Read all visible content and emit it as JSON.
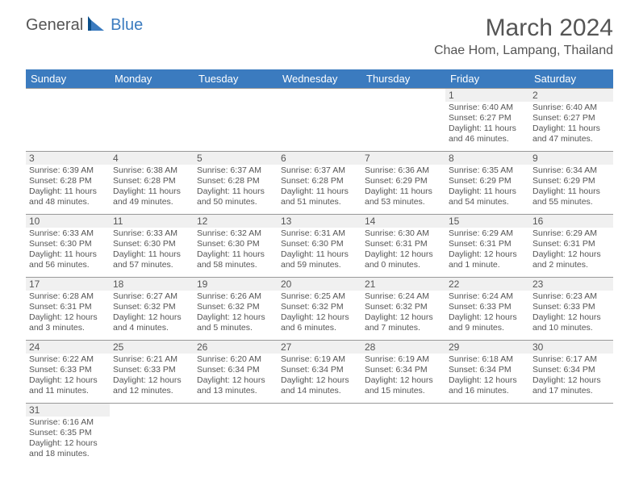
{
  "brand": {
    "general": "General",
    "blue": "Blue"
  },
  "title": "March 2024",
  "location": "Chae Hom, Lampang, Thailand",
  "colors": {
    "header_bg": "#3b7bbf",
    "header_text": "#ffffff",
    "daynum_bg": "#f0f0f0",
    "text": "#555555",
    "border": "#999999",
    "background": "#ffffff"
  },
  "weekdays": [
    "Sunday",
    "Monday",
    "Tuesday",
    "Wednesday",
    "Thursday",
    "Friday",
    "Saturday"
  ],
  "days": [
    {
      "n": "",
      "sunrise": "",
      "sunset": "",
      "daylight": "",
      "empty": true
    },
    {
      "n": "",
      "sunrise": "",
      "sunset": "",
      "daylight": "",
      "empty": true
    },
    {
      "n": "",
      "sunrise": "",
      "sunset": "",
      "daylight": "",
      "empty": true
    },
    {
      "n": "",
      "sunrise": "",
      "sunset": "",
      "daylight": "",
      "empty": true
    },
    {
      "n": "",
      "sunrise": "",
      "sunset": "",
      "daylight": "",
      "empty": true
    },
    {
      "n": "1",
      "sunrise": "Sunrise: 6:40 AM",
      "sunset": "Sunset: 6:27 PM",
      "daylight": "Daylight: 11 hours and 46 minutes."
    },
    {
      "n": "2",
      "sunrise": "Sunrise: 6:40 AM",
      "sunset": "Sunset: 6:27 PM",
      "daylight": "Daylight: 11 hours and 47 minutes."
    },
    {
      "n": "3",
      "sunrise": "Sunrise: 6:39 AM",
      "sunset": "Sunset: 6:28 PM",
      "daylight": "Daylight: 11 hours and 48 minutes."
    },
    {
      "n": "4",
      "sunrise": "Sunrise: 6:38 AM",
      "sunset": "Sunset: 6:28 PM",
      "daylight": "Daylight: 11 hours and 49 minutes."
    },
    {
      "n": "5",
      "sunrise": "Sunrise: 6:37 AM",
      "sunset": "Sunset: 6:28 PM",
      "daylight": "Daylight: 11 hours and 50 minutes."
    },
    {
      "n": "6",
      "sunrise": "Sunrise: 6:37 AM",
      "sunset": "Sunset: 6:28 PM",
      "daylight": "Daylight: 11 hours and 51 minutes."
    },
    {
      "n": "7",
      "sunrise": "Sunrise: 6:36 AM",
      "sunset": "Sunset: 6:29 PM",
      "daylight": "Daylight: 11 hours and 53 minutes."
    },
    {
      "n": "8",
      "sunrise": "Sunrise: 6:35 AM",
      "sunset": "Sunset: 6:29 PM",
      "daylight": "Daylight: 11 hours and 54 minutes."
    },
    {
      "n": "9",
      "sunrise": "Sunrise: 6:34 AM",
      "sunset": "Sunset: 6:29 PM",
      "daylight": "Daylight: 11 hours and 55 minutes."
    },
    {
      "n": "10",
      "sunrise": "Sunrise: 6:33 AM",
      "sunset": "Sunset: 6:30 PM",
      "daylight": "Daylight: 11 hours and 56 minutes."
    },
    {
      "n": "11",
      "sunrise": "Sunrise: 6:33 AM",
      "sunset": "Sunset: 6:30 PM",
      "daylight": "Daylight: 11 hours and 57 minutes."
    },
    {
      "n": "12",
      "sunrise": "Sunrise: 6:32 AM",
      "sunset": "Sunset: 6:30 PM",
      "daylight": "Daylight: 11 hours and 58 minutes."
    },
    {
      "n": "13",
      "sunrise": "Sunrise: 6:31 AM",
      "sunset": "Sunset: 6:30 PM",
      "daylight": "Daylight: 11 hours and 59 minutes."
    },
    {
      "n": "14",
      "sunrise": "Sunrise: 6:30 AM",
      "sunset": "Sunset: 6:31 PM",
      "daylight": "Daylight: 12 hours and 0 minutes."
    },
    {
      "n": "15",
      "sunrise": "Sunrise: 6:29 AM",
      "sunset": "Sunset: 6:31 PM",
      "daylight": "Daylight: 12 hours and 1 minute."
    },
    {
      "n": "16",
      "sunrise": "Sunrise: 6:29 AM",
      "sunset": "Sunset: 6:31 PM",
      "daylight": "Daylight: 12 hours and 2 minutes."
    },
    {
      "n": "17",
      "sunrise": "Sunrise: 6:28 AM",
      "sunset": "Sunset: 6:31 PM",
      "daylight": "Daylight: 12 hours and 3 minutes."
    },
    {
      "n": "18",
      "sunrise": "Sunrise: 6:27 AM",
      "sunset": "Sunset: 6:32 PM",
      "daylight": "Daylight: 12 hours and 4 minutes."
    },
    {
      "n": "19",
      "sunrise": "Sunrise: 6:26 AM",
      "sunset": "Sunset: 6:32 PM",
      "daylight": "Daylight: 12 hours and 5 minutes."
    },
    {
      "n": "20",
      "sunrise": "Sunrise: 6:25 AM",
      "sunset": "Sunset: 6:32 PM",
      "daylight": "Daylight: 12 hours and 6 minutes."
    },
    {
      "n": "21",
      "sunrise": "Sunrise: 6:24 AM",
      "sunset": "Sunset: 6:32 PM",
      "daylight": "Daylight: 12 hours and 7 minutes."
    },
    {
      "n": "22",
      "sunrise": "Sunrise: 6:24 AM",
      "sunset": "Sunset: 6:33 PM",
      "daylight": "Daylight: 12 hours and 9 minutes."
    },
    {
      "n": "23",
      "sunrise": "Sunrise: 6:23 AM",
      "sunset": "Sunset: 6:33 PM",
      "daylight": "Daylight: 12 hours and 10 minutes."
    },
    {
      "n": "24",
      "sunrise": "Sunrise: 6:22 AM",
      "sunset": "Sunset: 6:33 PM",
      "daylight": "Daylight: 12 hours and 11 minutes."
    },
    {
      "n": "25",
      "sunrise": "Sunrise: 6:21 AM",
      "sunset": "Sunset: 6:33 PM",
      "daylight": "Daylight: 12 hours and 12 minutes."
    },
    {
      "n": "26",
      "sunrise": "Sunrise: 6:20 AM",
      "sunset": "Sunset: 6:34 PM",
      "daylight": "Daylight: 12 hours and 13 minutes."
    },
    {
      "n": "27",
      "sunrise": "Sunrise: 6:19 AM",
      "sunset": "Sunset: 6:34 PM",
      "daylight": "Daylight: 12 hours and 14 minutes."
    },
    {
      "n": "28",
      "sunrise": "Sunrise: 6:19 AM",
      "sunset": "Sunset: 6:34 PM",
      "daylight": "Daylight: 12 hours and 15 minutes."
    },
    {
      "n": "29",
      "sunrise": "Sunrise: 6:18 AM",
      "sunset": "Sunset: 6:34 PM",
      "daylight": "Daylight: 12 hours and 16 minutes."
    },
    {
      "n": "30",
      "sunrise": "Sunrise: 6:17 AM",
      "sunset": "Sunset: 6:34 PM",
      "daylight": "Daylight: 12 hours and 17 minutes."
    },
    {
      "n": "31",
      "sunrise": "Sunrise: 6:16 AM",
      "sunset": "Sunset: 6:35 PM",
      "daylight": "Daylight: 12 hours and 18 minutes."
    },
    {
      "n": "",
      "sunrise": "",
      "sunset": "",
      "daylight": "",
      "empty": true
    },
    {
      "n": "",
      "sunrise": "",
      "sunset": "",
      "daylight": "",
      "empty": true
    },
    {
      "n": "",
      "sunrise": "",
      "sunset": "",
      "daylight": "",
      "empty": true
    },
    {
      "n": "",
      "sunrise": "",
      "sunset": "",
      "daylight": "",
      "empty": true
    },
    {
      "n": "",
      "sunrise": "",
      "sunset": "",
      "daylight": "",
      "empty": true
    },
    {
      "n": "",
      "sunrise": "",
      "sunset": "",
      "daylight": "",
      "empty": true
    }
  ]
}
